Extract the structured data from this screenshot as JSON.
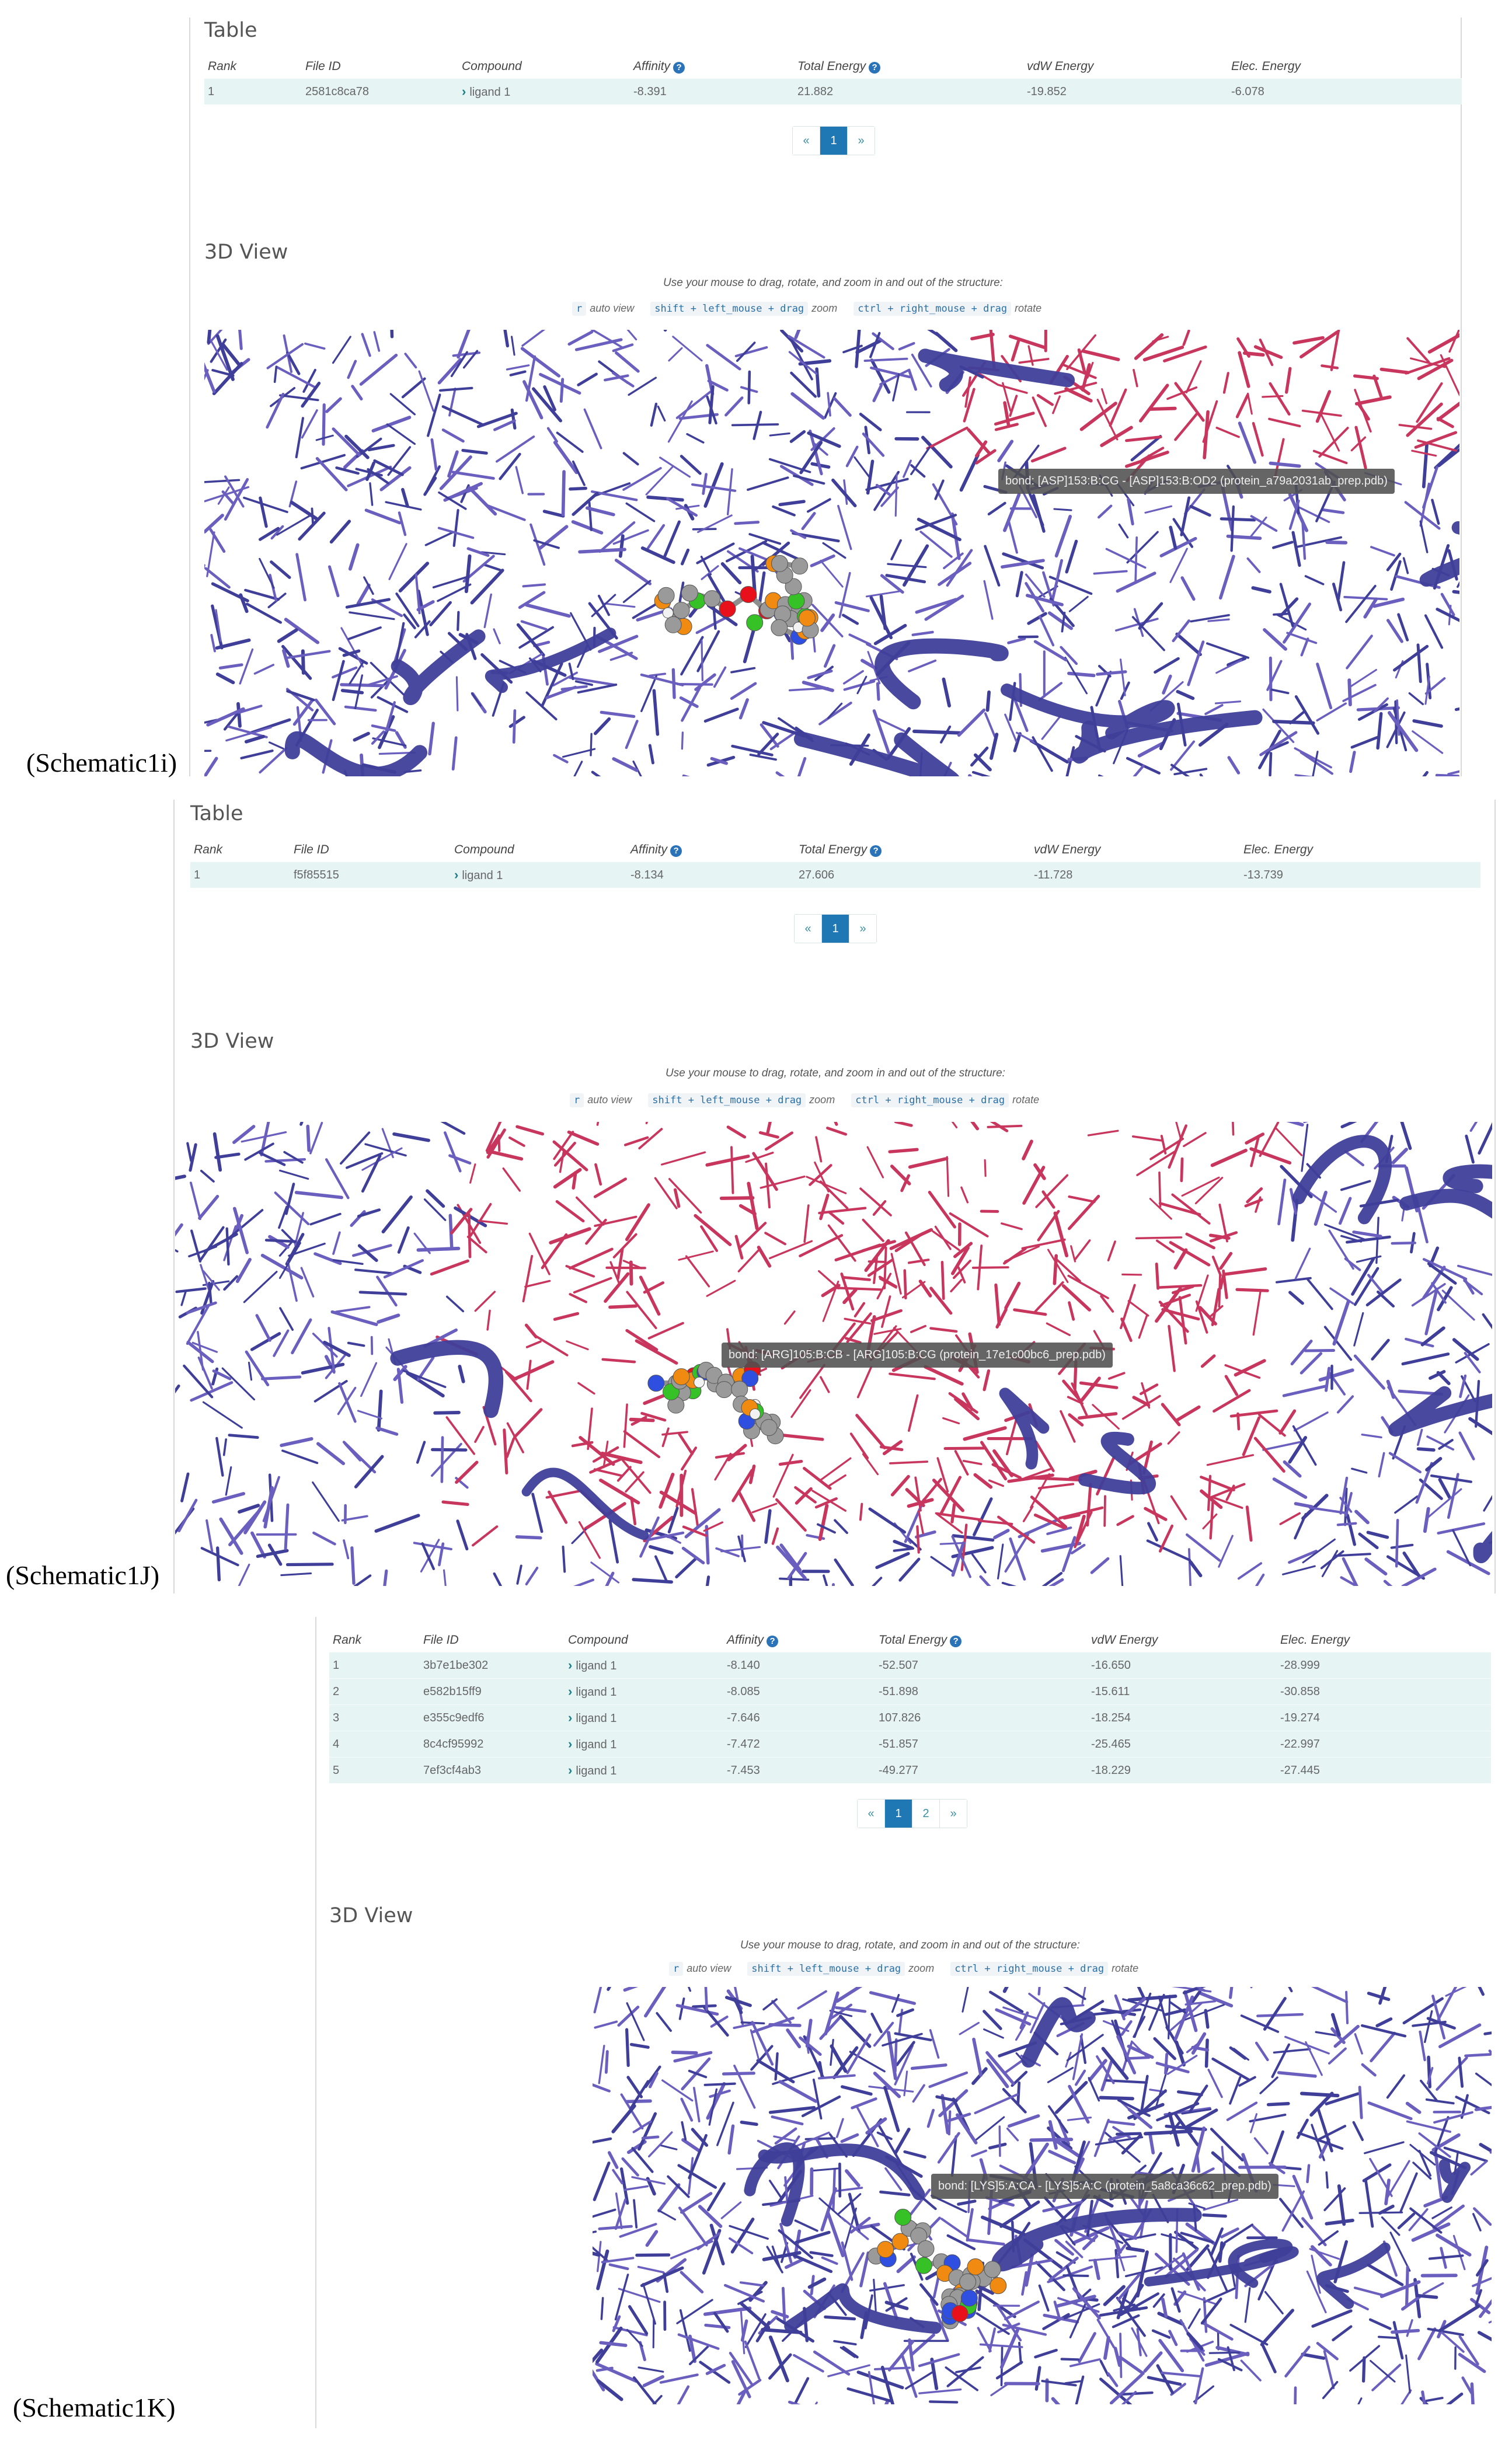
{
  "shared": {
    "table_title": "Table",
    "view_title": "3D View",
    "hint": "Use your mouse to drag, rotate, and zoom in and out of the structure:",
    "headers": [
      "Rank",
      "File ID",
      "Compound",
      "Affinity",
      "Total Energy",
      "vdW Energy",
      "Elec. Energy"
    ],
    "auto_key": "r",
    "auto_label": "auto view",
    "zoom_keys": "shift + left_mouse + drag",
    "zoom_label": "zoom",
    "rotate_keys": "ctrl + right_mouse + drag",
    "rotate_label": "rotate",
    "prev": "«",
    "next": "»"
  },
  "panel_i": {
    "caption": "(Schematic1i)",
    "rows": [
      {
        "rank": "1",
        "file_id": "2581c8ca78",
        "compound": "ligand 1",
        "affinity": "-8.391",
        "total": "21.882",
        "vdw": "-19.852",
        "elec": "-6.078"
      }
    ],
    "pages": [
      "1"
    ],
    "tooltip": "bond: [ASP]153:B:CG - [ASP]153:B:OD2 (protein_a79a2031ab_prep.pdb)"
  },
  "panel_j": {
    "caption": "(Schematic1J)",
    "rows": [
      {
        "rank": "1",
        "file_id": "f5f85515",
        "compound": "ligand 1",
        "affinity": "-8.134",
        "total": "27.606",
        "vdw": "-11.728",
        "elec": "-13.739"
      }
    ],
    "pages": [
      "1"
    ],
    "tooltip": "bond: [ARG]105:B:CB - [ARG]105:B:CG (protein_17e1c00bc6_prep.pdb)"
  },
  "panel_k": {
    "caption": "(Schematic1K)",
    "rows": [
      {
        "rank": "1",
        "file_id": "3b7e1be302",
        "compound": "ligand 1",
        "affinity": "-8.140",
        "total": "-52.507",
        "vdw": "-16.650",
        "elec": "-28.999"
      },
      {
        "rank": "2",
        "file_id": "e582b15ff9",
        "compound": "ligand 1",
        "affinity": "-8.085",
        "total": "-51.898",
        "vdw": "-15.611",
        "elec": "-30.858"
      },
      {
        "rank": "3",
        "file_id": "e355c9edf6",
        "compound": "ligand 1",
        "affinity": "-7.646",
        "total": "107.826",
        "vdw": "-18.254",
        "elec": "-19.274"
      },
      {
        "rank": "4",
        "file_id": "8c4cf95992",
        "compound": "ligand 1",
        "affinity": "-7.472",
        "total": "-51.857",
        "vdw": "-25.465",
        "elec": "-22.997"
      },
      {
        "rank": "5",
        "file_id": "7ef3cf4ab3",
        "compound": "ligand 1",
        "affinity": "-7.453",
        "total": "-49.277",
        "vdw": "-18.229",
        "elec": "-27.445"
      }
    ],
    "pages": [
      "1",
      "2"
    ],
    "tooltip": "bond: [LYS]5:A:CA - [LYS]5:A:C (protein_5a8ca36c62_prep.pdb)"
  },
  "colors": {
    "protein": "#3f3f9a",
    "protein_light": "#6a5fbf",
    "protein_chain_b": "#c8365e",
    "carbon": "#9a9a9a",
    "nitrogen": "#2f4fe0",
    "oxygen": "#e8101a",
    "phosphorus": "#f08a10",
    "chlorine": "#36c226",
    "hydrogen": "#f2f2f2",
    "table_row": "#e6f4f4",
    "pager_active": "#1f78b4"
  }
}
